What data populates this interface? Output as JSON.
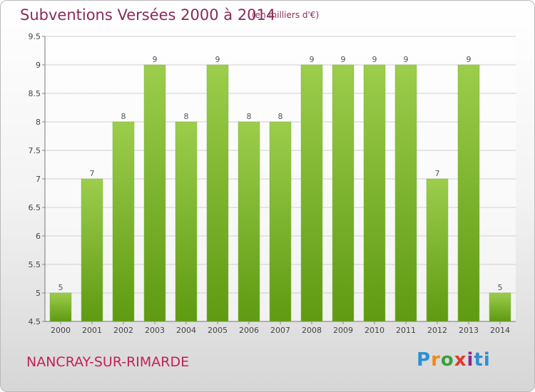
{
  "header": {
    "title": "Subventions Versées 2000 à 2014",
    "subtitle": "(en milliers d'€)"
  },
  "footer": {
    "city": "NANCRAY-SUR-RIMARDE",
    "logo_letters": [
      "P",
      "r",
      "o",
      "x",
      "i",
      "ti"
    ]
  },
  "colors": {
    "bar_top": "#9ccd4c",
    "bar_bottom": "#5e9a12",
    "title": "#8a2a5a",
    "city": "#c2205a"
  },
  "chart_data": {
    "type": "bar",
    "title": "Subventions Versées 2000 à 2014",
    "subtitle": "(en milliers d'€)",
    "categories": [
      "2000",
      "2001",
      "2002",
      "2003",
      "2004",
      "2005",
      "2006",
      "2007",
      "2008",
      "2009",
      "2010",
      "2011",
      "2012",
      "2013",
      "2014"
    ],
    "values": [
      5,
      7,
      8,
      9,
      8,
      9,
      8,
      8,
      9,
      9,
      9,
      9,
      7,
      9,
      5
    ],
    "ylim": [
      4.5,
      9.5
    ],
    "yticks": [
      "4.5",
      "5",
      "5.5",
      "6",
      "6.5",
      "7",
      "7.5",
      "8",
      "8.5",
      "9",
      "9.5"
    ],
    "grid": true,
    "xlabel": "",
    "ylabel": ""
  }
}
